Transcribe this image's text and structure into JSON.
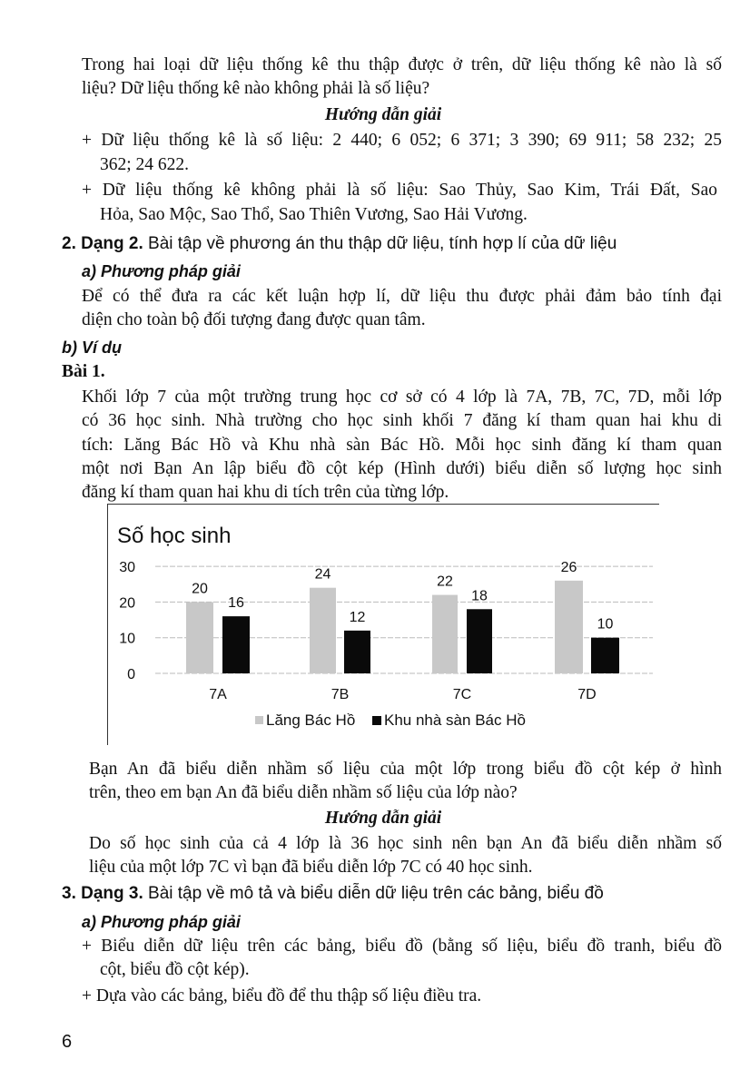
{
  "part1": {
    "question_lines": [
      "Trong hai loại dữ liệu thống kê thu thập được ở trên, dữ liệu thống kê nào là số",
      "liệu? Dữ liệu thống kê nào không phải là số liệu?"
    ],
    "solution_heading": "Hướng dẫn giải",
    "answer_lines": [
      "+ Dữ liệu thống kê là số liệu: 2 440; 6 052; 6 371; 3 390; 69 911; 58 232; 25",
      "362; 24 622.",
      "+ Dữ liệu thống kê không phải là số liệu: Sao Thủy, Sao Kim, Trái Đất, Sao",
      "Hỏa, Sao Mộc, Sao Thổ, Sao Thiên Vương, Sao Hải Vương."
    ]
  },
  "section2": {
    "number": "2. Dạng 2.",
    "title": " Bài tập về phương án thu thập dữ liệu, tính hợp lí của dữ liệu",
    "method_heading": "a) Phương pháp giải",
    "method_lines": [
      "Để có thể đưa ra các kết luận hợp lí, dữ liệu thu được phải đảm bảo tính đại",
      "diện cho toàn bộ đối tượng đang được quan tâm."
    ],
    "example_heading": "b) Ví dụ",
    "exercise_label": "Bài 1.",
    "exercise_lines": [
      "Khối lớp 7 của một trường trung học cơ sở có 4 lớp là 7A, 7B, 7C, 7D, mỗi lớp",
      "có 36 học sinh. Nhà trường cho học sinh khối 7 đăng kí tham quan hai khu di",
      "tích: Lăng Bác Hồ và Khu nhà sàn Bác Hồ. Mỗi học sinh đăng kí tham quan",
      "một nơi Bạn An lập biểu đồ cột kép (Hình dưới) biểu diễn số lượng học sinh",
      "đăng kí tham quan hai khu di tích trên của từng lớp."
    ],
    "question_lines": [
      "Bạn An đã biểu diễn nhầm số liệu của một lớp trong biểu đồ cột kép ở hình",
      "trên, theo em bạn An đã biểu diễn nhầm số liệu của lớp nào?"
    ],
    "solution_heading": "Hướng dẫn giải",
    "solution_lines": [
      "Do số học sinh của cả 4 lớp là 36 học sinh nên bạn An đã biểu diễn nhầm số",
      "liệu của một lớp 7C vì bạn đã biểu diễn lớp 7C có 40 học sinh."
    ]
  },
  "section3": {
    "number": "3. Dạng 3.",
    "title": " Bài tập về mô tả và biểu diễn dữ liệu trên các bảng, biểu đồ",
    "method_heading": "a) Phương pháp giải",
    "method_lines": [
      "+ Biểu diễn dữ liệu trên các bảng, biểu đồ (bằng số liệu, biểu đồ tranh, biểu đồ",
      "cột, biểu đồ cột kép).",
      "+ Dựa vào các bảng, biểu đồ để thu thập số liệu điều tra."
    ]
  },
  "page_number": "6",
  "chart_data": {
    "type": "bar",
    "title": "Số học sinh",
    "categories": [
      "7A",
      "7B",
      "7C",
      "7D"
    ],
    "series": [
      {
        "name": "Lăng Bác Hồ",
        "values": [
          20,
          24,
          22,
          26
        ],
        "color": "#c8c8c8"
      },
      {
        "name": "Khu nhà sàn Bác Hồ",
        "values": [
          16,
          12,
          18,
          10
        ],
        "color": "#0a0a0a"
      }
    ],
    "yticks": [
      "0",
      "10",
      "20",
      "30"
    ],
    "ylim": [
      0,
      30
    ],
    "grid": true,
    "legend": "bottom"
  }
}
